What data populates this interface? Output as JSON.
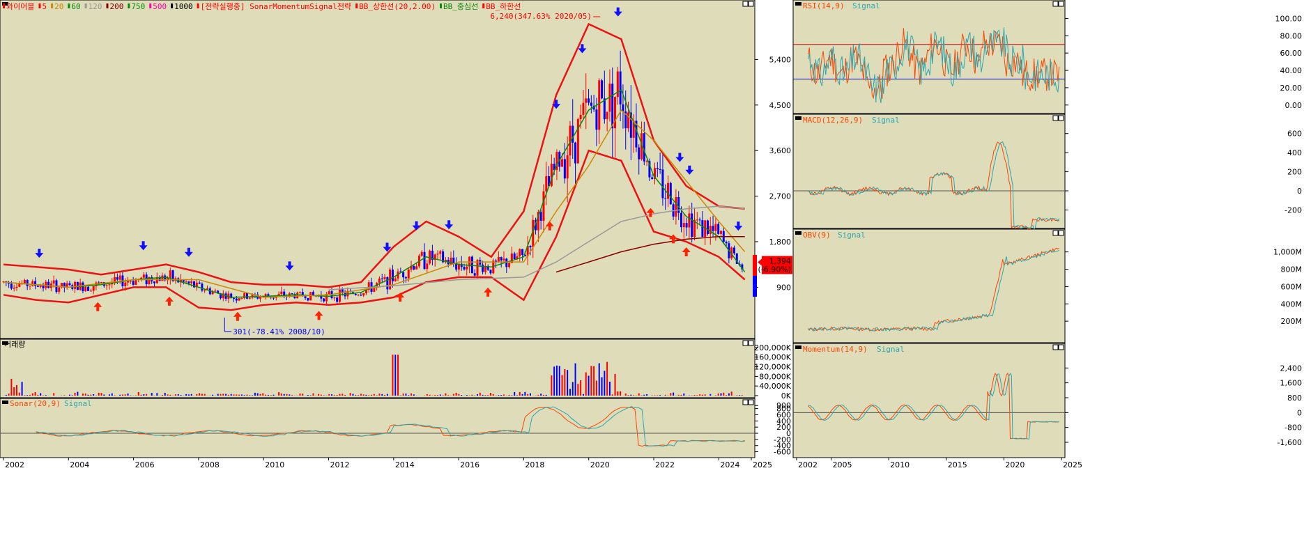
{
  "colors": {
    "panel_bg": "#dedcb9",
    "frame": "#000000",
    "candle_up": "#ff0000",
    "candle_down": "#0000ff",
    "bb_band": "#ee1111",
    "ma5": "#ff0000",
    "ma20": "#cc8800",
    "ma60": "#0a8a0a",
    "ma120": "#999999",
    "ma200": "#880000",
    "signal_line": "#2aa7b0",
    "indicator_line": "#ff4400",
    "price_tag_bg": "#ff0000"
  },
  "main_chart": {
    "legend": [
      {
        "text": "와이어블",
        "color": "#ff0000"
      },
      {
        "text": "5",
        "color": "#ff0000"
      },
      {
        "text": "20",
        "color": "#cc8800"
      },
      {
        "text": "60",
        "color": "#0a8a0a"
      },
      {
        "text": "120",
        "color": "#999999"
      },
      {
        "text": "200",
        "color": "#880000"
      },
      {
        "text": "750",
        "color": "#0a8a0a"
      },
      {
        "text": "500",
        "color": "#ff00aa"
      },
      {
        "text": "1000",
        "color": "#000000"
      },
      {
        "text": "[전략실행중] SonarMomentumSignal전략",
        "color": "#ff0000"
      },
      {
        "text": "BB_상한선(20,2.00)",
        "color": "#ff0000"
      },
      {
        "text": "BB_중심선",
        "color": "#0a8a0a"
      },
      {
        "text": "BB_하한선",
        "color": "#ff0000"
      }
    ],
    "max_annotation": "6,240(347.63% 2020/05)",
    "min_annotation": "301(-78.41% 2008/10)",
    "price_axis": [
      "5,400",
      "4,500",
      "3,600",
      "2,700",
      "1,800",
      "900"
    ],
    "current_price": "1,394",
    "current_change": "(-6.90%)"
  },
  "volume_chart": {
    "legend": "거래량",
    "axis": [
      "200,000K",
      "160,000K",
      "120,000K",
      "80,000K",
      "40,000K",
      "0K"
    ]
  },
  "sonar_chart": {
    "legend_main": "Sonar(20,9)",
    "legend_signal": "Signal",
    "axis": [
      "900",
      "800",
      "600",
      "400",
      "200",
      "0",
      "-200",
      "-400",
      "-600"
    ]
  },
  "x_axis_main": [
    "2002",
    "2004",
    "2006",
    "2008",
    "2010",
    "2012",
    "2014",
    "2016",
    "2018",
    "2020",
    "2022",
    "2024",
    "2025"
  ],
  "rsi_chart": {
    "legend_main": "RSI(14,9)",
    "legend_signal": "Signal",
    "axis": [
      "100.00",
      "80.00",
      "60.00",
      "40.00",
      "20.00",
      "0.00"
    ]
  },
  "macd_chart": {
    "legend_main": "MACD(12,26,9)",
    "legend_signal": "Signal",
    "axis": [
      "600",
      "400",
      "200",
      "0",
      "-200"
    ]
  },
  "obv_chart": {
    "legend_main": "OBV(9)",
    "legend_signal": "Signal",
    "axis": [
      "1,000M",
      "800M",
      "600M",
      "400M",
      "200M"
    ]
  },
  "momentum_chart": {
    "legend_main": "Momentum(14,9)",
    "legend_signal": "Signal",
    "axis": [
      "2,400",
      "1,600",
      "800",
      "0",
      "-800",
      "-1,600"
    ]
  },
  "x_axis_right": [
    "2002",
    "2005",
    "2010",
    "2015",
    "2020",
    "2025"
  ],
  "chart_data": {
    "type": "candlestick",
    "title": "와이어블",
    "x_range": [
      "2002",
      "2025"
    ],
    "y_range": [
      300,
      6300
    ],
    "max_point": {
      "value": 6240,
      "date": "2020/05",
      "pct": "347.63%"
    },
    "min_point": {
      "value": 301,
      "date": "2008/10",
      "pct": "-78.41%"
    },
    "last_price": 1394,
    "last_change_pct": -6.9,
    "series": [
      {
        "name": "BB_상한선(20,2.00)",
        "x": [
          2002.0,
          2003,
          2004,
          2005,
          2006,
          2007,
          2008,
          2009,
          2010,
          2011,
          2012,
          2013,
          2014,
          2015,
          2016,
          2017,
          2018,
          2019,
          2020,
          2021,
          2022,
          2023,
          2024,
          2024.8
        ],
        "values": [
          1350,
          1300,
          1250,
          1150,
          1250,
          1350,
          1200,
          1000,
          950,
          950,
          900,
          1000,
          1700,
          2200,
          1900,
          1500,
          2400,
          4700,
          6100,
          5800,
          3800,
          2900,
          2500,
          2450
        ]
      },
      {
        "name": "BB_중심선",
        "x": [
          2002.0,
          2003,
          2004,
          2005,
          2006,
          2007,
          2008,
          2009,
          2010,
          2011,
          2012,
          2013,
          2014,
          2015,
          2016,
          2017,
          2018,
          2019,
          2020,
          2021,
          2022,
          2023,
          2024,
          2024.8
        ],
        "values": [
          1000,
          950,
          900,
          950,
          1050,
          1100,
          900,
          700,
          720,
          750,
          720,
          800,
          1100,
          1500,
          1350,
          1300,
          1500,
          3300,
          4400,
          4800,
          3100,
          2300,
          1900,
          1200
        ]
      },
      {
        "name": "BB_하한선",
        "x": [
          2002.0,
          2003,
          2004,
          2005,
          2006,
          2007,
          2008,
          2009,
          2010,
          2011,
          2012,
          2013,
          2014,
          2015,
          2016,
          2017,
          2018,
          2019,
          2020,
          2021,
          2022,
          2023,
          2024,
          2024.8
        ],
        "values": [
          750,
          650,
          600,
          750,
          900,
          900,
          500,
          450,
          550,
          600,
          550,
          600,
          700,
          1000,
          1100,
          1100,
          650,
          1900,
          3600,
          3400,
          2000,
          1800,
          1500,
          1050
        ]
      },
      {
        "name": "60",
        "x": [
          2002.0,
          2004,
          2006,
          2008,
          2010,
          2012,
          2014,
          2016,
          2018,
          2019,
          2020,
          2021,
          2022,
          2023,
          2024,
          2024.8
        ],
        "values": [
          1000,
          900,
          1050,
          1050,
          700,
          750,
          950,
          1400,
          1400,
          2400,
          3300,
          4400,
          3800,
          3000,
          2200,
          1600
        ]
      },
      {
        "name": "120",
        "x": [
          2012.0,
          2014,
          2016,
          2018,
          2019,
          2020,
          2021,
          2022,
          2023,
          2024,
          2024.8
        ],
        "values": [
          850,
          930,
          1050,
          1100,
          1400,
          1800,
          2200,
          2350,
          2450,
          2500,
          2450
        ]
      },
      {
        "name": "200",
        "x": [
          2019.0,
          2020,
          2021,
          2022,
          2023,
          2024,
          2024.8
        ],
        "values": [
          1200,
          1400,
          1600,
          1750,
          1850,
          1900,
          1900
        ]
      }
    ]
  }
}
